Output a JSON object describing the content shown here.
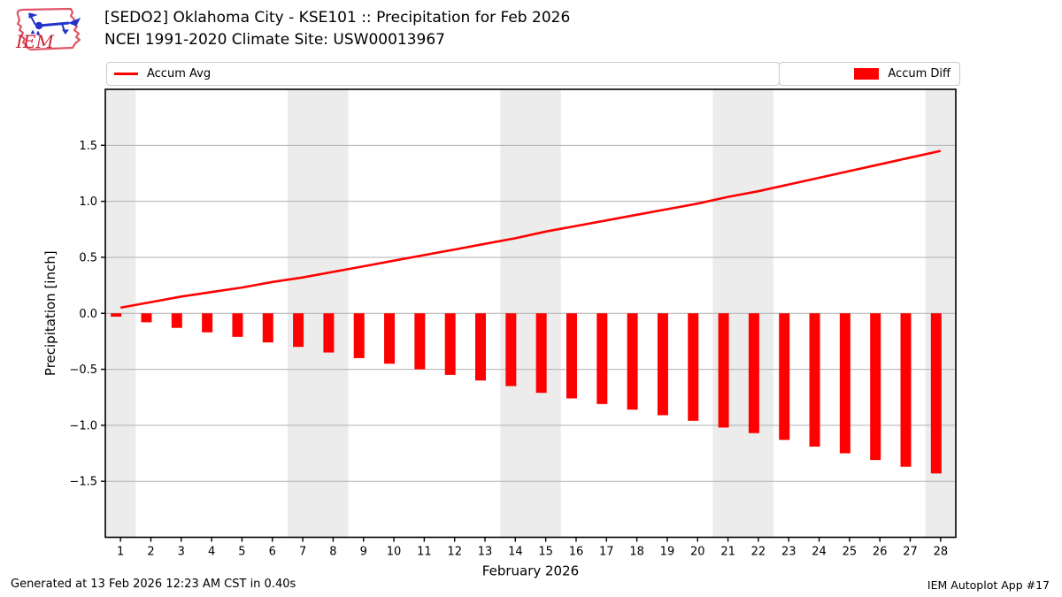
{
  "header": {
    "title_line1": "[SEDO2] Oklahoma City - KSE101 :: Precipitation for Feb 2026",
    "title_line2": "NCEI 1991-2020 Climate Site: USW00013967"
  },
  "logo": {
    "text": "IEM"
  },
  "legend": {
    "avg_label": "Accum Avg",
    "diff_label": "Accum Diff"
  },
  "footer": {
    "left": "Generated at 13 Feb 2026 12:23 AM CST in 0.40s",
    "right": "IEM Autoplot App #17"
  },
  "colors": {
    "accent_red": "#ff0000",
    "band_gray": "#ececec",
    "grid_gray": "#b0b0b0",
    "spine_black": "#000000",
    "legend_border": "#c9c9c9",
    "logo_outline": "#e05566",
    "logo_blue": "#2233cc",
    "logo_text_red": "#cc2233"
  },
  "chart_data": {
    "type": "mixed",
    "title": "[SEDO2] Oklahoma City - KSE101 :: Precipitation for Feb 2026",
    "subtitle": "NCEI 1991-2020 Climate Site: USW00013967",
    "xlabel": "February 2026",
    "ylabel": "Precipitation [inch]",
    "x": [
      1,
      2,
      3,
      4,
      5,
      6,
      7,
      8,
      9,
      10,
      11,
      12,
      13,
      14,
      15,
      16,
      17,
      18,
      19,
      20,
      21,
      22,
      23,
      24,
      25,
      26,
      27,
      28
    ],
    "series": [
      {
        "name": "Accum Avg",
        "type": "line",
        "color": "#ff0000",
        "values": [
          0.05,
          0.1,
          0.15,
          0.19,
          0.23,
          0.28,
          0.32,
          0.37,
          0.42,
          0.47,
          0.52,
          0.57,
          0.62,
          0.67,
          0.73,
          0.78,
          0.83,
          0.88,
          0.93,
          0.98,
          1.04,
          1.09,
          1.15,
          1.21,
          1.27,
          1.33,
          1.39,
          1.45
        ]
      },
      {
        "name": "Accum Diff",
        "type": "bar",
        "color": "#ff0000",
        "values": [
          -0.03,
          -0.08,
          -0.13,
          -0.17,
          -0.21,
          -0.26,
          -0.3,
          -0.35,
          -0.4,
          -0.45,
          -0.5,
          -0.55,
          -0.6,
          -0.65,
          -0.71,
          -0.76,
          -0.81,
          -0.86,
          -0.91,
          -0.96,
          -1.02,
          -1.07,
          -1.13,
          -1.19,
          -1.25,
          -1.31,
          -1.37,
          -1.43
        ]
      }
    ],
    "xlim": [
      0.5,
      28.5
    ],
    "ylim": [
      -2.0,
      2.0
    ],
    "yticks": [
      1.5,
      1.0,
      0.5,
      0.0,
      -0.5,
      -1.0,
      -1.5
    ],
    "ytick_labels": [
      "1.5",
      "1.0",
      "0.5",
      "0.0",
      "−0.5",
      "−1.0",
      "−1.5"
    ],
    "weekend_bands": [
      [
        0.5,
        1.5
      ],
      [
        6.5,
        8.5
      ],
      [
        13.5,
        15.5
      ],
      [
        20.5,
        22.5
      ],
      [
        27.5,
        28.5
      ]
    ],
    "grid": true,
    "legend_position": "top"
  }
}
